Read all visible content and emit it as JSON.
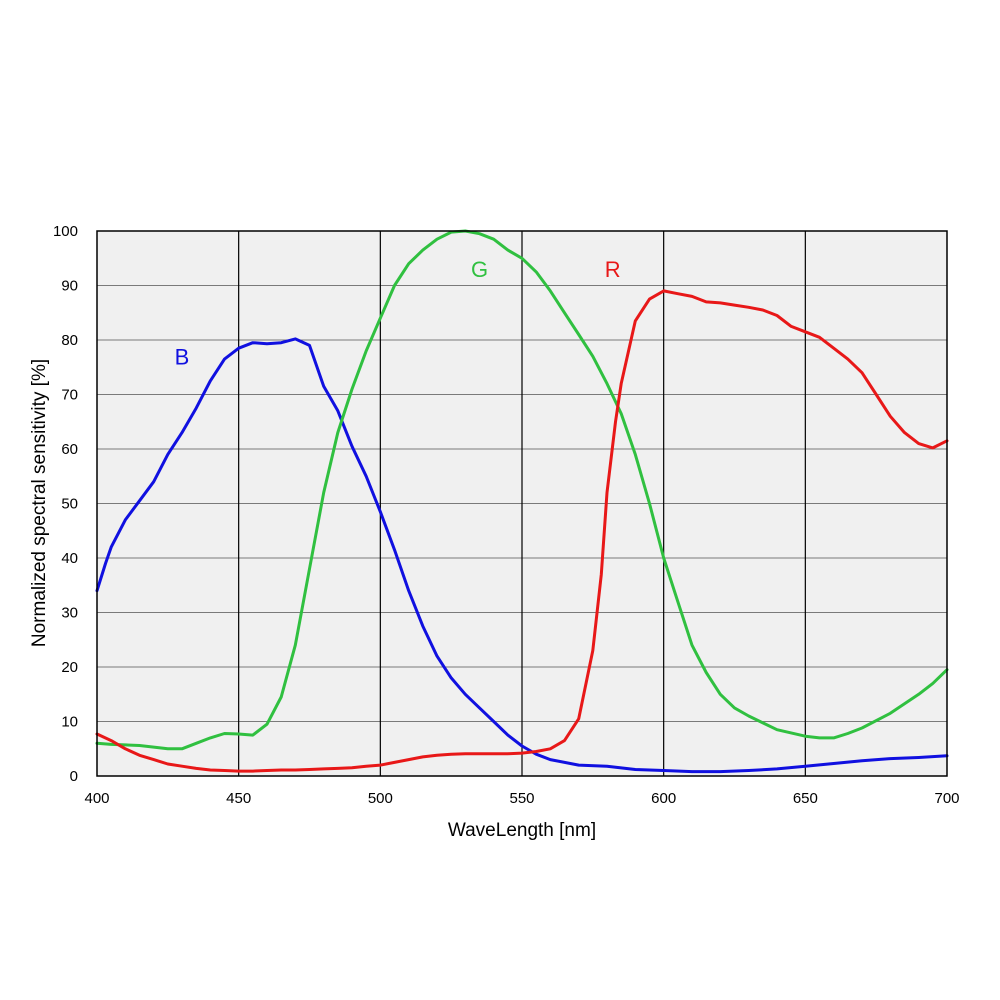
{
  "chart_data": {
    "type": "line",
    "xlabel": "WaveLength [nm]",
    "ylabel": "Normalized spectral sensitivity [%]",
    "xlim": [
      400,
      700
    ],
    "ylim": [
      0,
      100
    ],
    "x_ticks": [
      400,
      450,
      500,
      550,
      600,
      650,
      700
    ],
    "y_ticks": [
      0,
      10,
      20,
      30,
      40,
      50,
      60,
      70,
      80,
      90,
      100
    ],
    "grid": true,
    "plot_background": "#f0f0f0",
    "legend": "inline labels",
    "series": [
      {
        "name": "B",
        "color": "#1010e0",
        "label_at": [
          430,
          77
        ],
        "x": [
          400,
          403,
          405,
          410,
          415,
          420,
          425,
          430,
          435,
          440,
          445,
          450,
          455,
          460,
          465,
          470,
          475,
          480,
          485,
          490,
          495,
          500,
          505,
          510,
          515,
          520,
          525,
          530,
          535,
          540,
          545,
          550,
          555,
          560,
          570,
          580,
          590,
          600,
          610,
          620,
          630,
          640,
          650,
          660,
          670,
          680,
          690,
          700
        ],
        "y": [
          34,
          39,
          42,
          47,
          50.5,
          54,
          59,
          63,
          67.5,
          72.5,
          76.5,
          78.5,
          79.5,
          79.3,
          79.5,
          80.2,
          79,
          71.5,
          67,
          60.5,
          55,
          48.5,
          41.5,
          34,
          27.5,
          22,
          18,
          15,
          12.5,
          10,
          7.5,
          5.5,
          4,
          3,
          2,
          1.8,
          1.2,
          1,
          0.8,
          0.8,
          1,
          1.3,
          1.8,
          2.3,
          2.8,
          3.2,
          3.4,
          3.7
        ]
      },
      {
        "name": "G",
        "color": "#30c040",
        "label_at": [
          535,
          93
        ],
        "x": [
          400,
          405,
          410,
          415,
          420,
          425,
          430,
          435,
          440,
          445,
          450,
          455,
          460,
          465,
          470,
          475,
          480,
          485,
          490,
          495,
          500,
          505,
          510,
          515,
          520,
          525,
          530,
          535,
          540,
          545,
          550,
          555,
          560,
          565,
          570,
          575,
          580,
          585,
          590,
          595,
          600,
          605,
          610,
          615,
          620,
          625,
          630,
          640,
          650,
          655,
          660,
          665,
          670,
          680,
          690,
          695,
          700
        ],
        "y": [
          6,
          5.8,
          5.7,
          5.6,
          5.3,
          5,
          5,
          6,
          7,
          7.8,
          7.7,
          7.5,
          9.5,
          14.5,
          24,
          38,
          52,
          63,
          71,
          78,
          84,
          90,
          94,
          96.5,
          98.5,
          99.8,
          100,
          99.5,
          98.5,
          96.5,
          95,
          92.5,
          89,
          85,
          81,
          77,
          72,
          66.5,
          59,
          50,
          40,
          32,
          24,
          19,
          15,
          12.5,
          11,
          8.5,
          7.3,
          7,
          7,
          7.8,
          8.8,
          11.5,
          15,
          17,
          19.5
        ]
      },
      {
        "name": "R",
        "color": "#e81818",
        "label_at": [
          582,
          93
        ],
        "x": [
          400,
          405,
          410,
          415,
          420,
          425,
          430,
          435,
          440,
          445,
          450,
          455,
          460,
          465,
          470,
          475,
          480,
          485,
          490,
          495,
          500,
          505,
          510,
          515,
          520,
          525,
          530,
          535,
          540,
          545,
          550,
          555,
          560,
          565,
          570,
          575,
          578,
          580,
          583,
          585,
          590,
          595,
          600,
          605,
          610,
          615,
          620,
          625,
          630,
          635,
          640,
          645,
          650,
          655,
          660,
          665,
          670,
          675,
          680,
          685,
          690,
          695,
          700
        ],
        "y": [
          7.7,
          6.5,
          5,
          3.8,
          3,
          2.2,
          1.8,
          1.4,
          1.1,
          1,
          0.9,
          0.9,
          1,
          1.1,
          1.1,
          1.2,
          1.3,
          1.4,
          1.5,
          1.8,
          2,
          2.5,
          3,
          3.5,
          3.8,
          4,
          4.1,
          4.1,
          4.1,
          4.1,
          4.2,
          4.5,
          5,
          6.5,
          10.5,
          23,
          37,
          52,
          65,
          72,
          83.5,
          87.5,
          89,
          88.5,
          88,
          87,
          86.8,
          86.4,
          86,
          85.5,
          84.5,
          82.5,
          81.5,
          80.5,
          78.5,
          76.5,
          74,
          70,
          66,
          63,
          61,
          60.2,
          61.5
        ]
      }
    ]
  }
}
